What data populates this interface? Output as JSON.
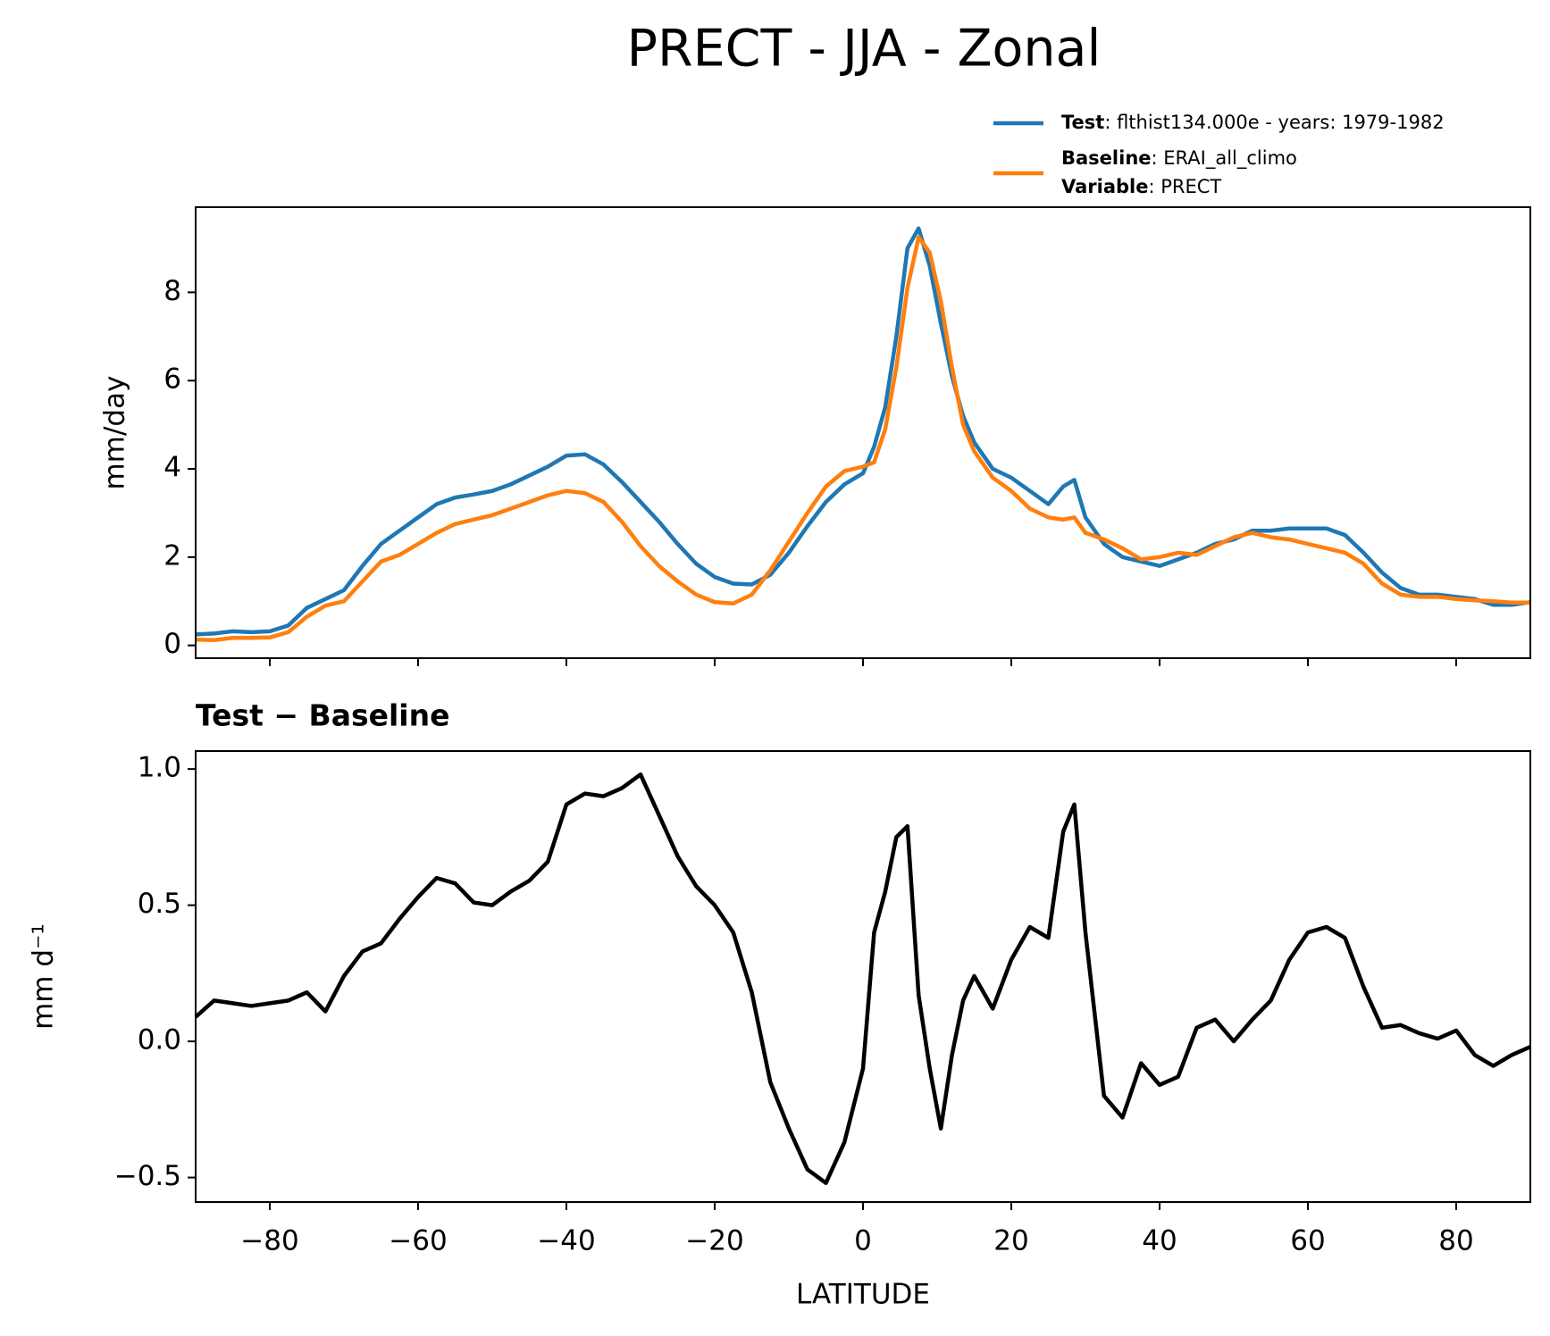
{
  "title": "PRECT - JJA - Zonal",
  "chart_data": [
    {
      "type": "line",
      "ylabel": "mm/day",
      "x": [
        -90,
        -87.5,
        -85,
        -82.5,
        -80,
        -77.5,
        -75,
        -72.5,
        -70,
        -67.5,
        -65,
        -62.5,
        -60,
        -57.5,
        -55,
        -52.5,
        -50,
        -47.5,
        -45,
        -42.5,
        -40,
        -37.5,
        -35,
        -32.5,
        -30,
        -27.5,
        -25,
        -22.5,
        -20,
        -17.5,
        -15,
        -12.5,
        -10,
        -7.5,
        -5,
        -2.5,
        0,
        1.5,
        3,
        4.5,
        6,
        7.5,
        9,
        10.5,
        12,
        13.5,
        15,
        17.5,
        20,
        22.5,
        25,
        27,
        28.5,
        30,
        32.5,
        35,
        37.5,
        40,
        42.5,
        45,
        47.5,
        50,
        52.5,
        55,
        57.5,
        60,
        62.5,
        65,
        67.5,
        70,
        72.5,
        75,
        77.5,
        80,
        82.5,
        85,
        87.5,
        90
      ],
      "series": [
        {
          "name": "Test",
          "color": "#1f77b4",
          "legend": [
            {
              "key": "Test",
              "text": ": flthist134.000e - years: 1979-1982"
            }
          ],
          "values": [
            0.25,
            0.27,
            0.32,
            0.3,
            0.32,
            0.45,
            0.85,
            1.05,
            1.25,
            1.8,
            2.3,
            2.6,
            2.9,
            3.2,
            3.35,
            3.42,
            3.5,
            3.65,
            3.85,
            4.05,
            4.3,
            4.33,
            4.1,
            3.7,
            3.25,
            2.8,
            2.3,
            1.85,
            1.55,
            1.4,
            1.38,
            1.6,
            2.1,
            2.7,
            3.25,
            3.65,
            3.9,
            4.5,
            5.4,
            7.0,
            9.0,
            9.45,
            8.6,
            7.3,
            6.1,
            5.2,
            4.6,
            4.0,
            3.8,
            3.5,
            3.2,
            3.6,
            3.75,
            2.9,
            2.3,
            2.0,
            1.9,
            1.8,
            1.95,
            2.1,
            2.3,
            2.4,
            2.6,
            2.6,
            2.65,
            2.65,
            2.65,
            2.5,
            2.1,
            1.65,
            1.3,
            1.15,
            1.15,
            1.1,
            1.05,
            0.92,
            0.92,
            0.98
          ]
        },
        {
          "name": "Baseline",
          "color": "#ff7f0e",
          "legend": [
            {
              "key": "Baseline",
              "text": ": ERAI_all_climo"
            },
            {
              "key": "Variable",
              "text": ": PRECT"
            }
          ],
          "values": [
            0.13,
            0.12,
            0.17,
            0.17,
            0.18,
            0.3,
            0.65,
            0.9,
            1.0,
            1.45,
            1.9,
            2.05,
            2.3,
            2.55,
            2.75,
            2.85,
            2.95,
            3.1,
            3.25,
            3.4,
            3.5,
            3.45,
            3.25,
            2.8,
            2.25,
            1.8,
            1.45,
            1.15,
            0.98,
            0.95,
            1.15,
            1.7,
            2.35,
            3.0,
            3.6,
            3.95,
            4.05,
            4.15,
            4.9,
            6.3,
            8.1,
            9.25,
            8.9,
            7.8,
            6.3,
            5.0,
            4.4,
            3.8,
            3.5,
            3.1,
            2.9,
            2.85,
            2.9,
            2.55,
            2.4,
            2.2,
            1.95,
            2.0,
            2.1,
            2.05,
            2.25,
            2.45,
            2.55,
            2.45,
            2.4,
            2.3,
            2.2,
            2.1,
            1.85,
            1.4,
            1.15,
            1.1,
            1.1,
            1.05,
            1.02,
            1.0,
            0.97,
            0.97
          ]
        }
      ],
      "xlim": [
        -90,
        90
      ],
      "xticks": [
        -80,
        -60,
        -40,
        -20,
        0,
        20,
        40,
        60,
        80
      ],
      "show_xtick_labels": false,
      "ylim": [
        -0.29,
        9.93
      ],
      "yticks": [
        0,
        2,
        4,
        6,
        8
      ]
    },
    {
      "type": "line",
      "title": "Test − Baseline",
      "xlabel": "LATITUDE",
      "ylabel": "mm d⁻¹",
      "x": [
        -90,
        -87.5,
        -85,
        -82.5,
        -80,
        -77.5,
        -75,
        -72.5,
        -70,
        -67.5,
        -65,
        -62.5,
        -60,
        -57.5,
        -55,
        -52.5,
        -50,
        -47.5,
        -45,
        -42.5,
        -40,
        -37.5,
        -35,
        -32.5,
        -30,
        -27.5,
        -25,
        -22.5,
        -20,
        -17.5,
        -15,
        -12.5,
        -10,
        -7.5,
        -5,
        -2.5,
        0,
        1.5,
        3,
        4.5,
        6,
        7.5,
        9,
        10.5,
        12,
        13.5,
        15,
        17.5,
        20,
        22.5,
        25,
        27,
        28.5,
        30,
        32.5,
        35,
        37.5,
        40,
        42.5,
        45,
        47.5,
        50,
        52.5,
        55,
        57.5,
        60,
        62.5,
        65,
        67.5,
        70,
        72.5,
        75,
        77.5,
        80,
        82.5,
        85,
        87.5,
        90
      ],
      "series": [
        {
          "color": "#000000",
          "values": [
            0.09,
            0.15,
            0.14,
            0.13,
            0.14,
            0.15,
            0.18,
            0.11,
            0.24,
            0.33,
            0.36,
            0.45,
            0.53,
            0.6,
            0.58,
            0.51,
            0.5,
            0.55,
            0.59,
            0.66,
            0.87,
            0.91,
            0.9,
            0.93,
            0.98,
            0.83,
            0.68,
            0.57,
            0.5,
            0.4,
            0.18,
            -0.15,
            -0.32,
            -0.47,
            -0.52,
            -0.37,
            -0.1,
            0.4,
            0.55,
            0.75,
            0.79,
            0.17,
            -0.1,
            -0.32,
            -0.05,
            0.15,
            0.24,
            0.12,
            0.3,
            0.42,
            0.38,
            0.77,
            0.87,
            0.4,
            -0.2,
            -0.28,
            -0.08,
            -0.16,
            -0.13,
            0.05,
            0.08,
            0.0,
            0.08,
            0.15,
            0.3,
            0.4,
            0.42,
            0.38,
            0.2,
            0.05,
            0.06,
            0.03,
            0.01,
            0.04,
            -0.05,
            -0.09,
            -0.05,
            -0.02
          ]
        }
      ],
      "xlim": [
        -90,
        90
      ],
      "xticks": [
        {
          "value": -80,
          "label": "−80"
        },
        {
          "value": -60,
          "label": "−60"
        },
        {
          "value": -40,
          "label": "−40"
        },
        {
          "value": -20,
          "label": "−20"
        },
        0,
        20,
        40,
        60,
        80
      ],
      "show_xtick_labels": true,
      "ylim": [
        -0.59,
        1.066
      ],
      "yticks": [
        {
          "value": -0.5,
          "label": "−0.5"
        },
        {
          "value": 0,
          "label": "0.0"
        },
        0.5,
        {
          "value": 1,
          "label": "1.0"
        }
      ]
    }
  ]
}
